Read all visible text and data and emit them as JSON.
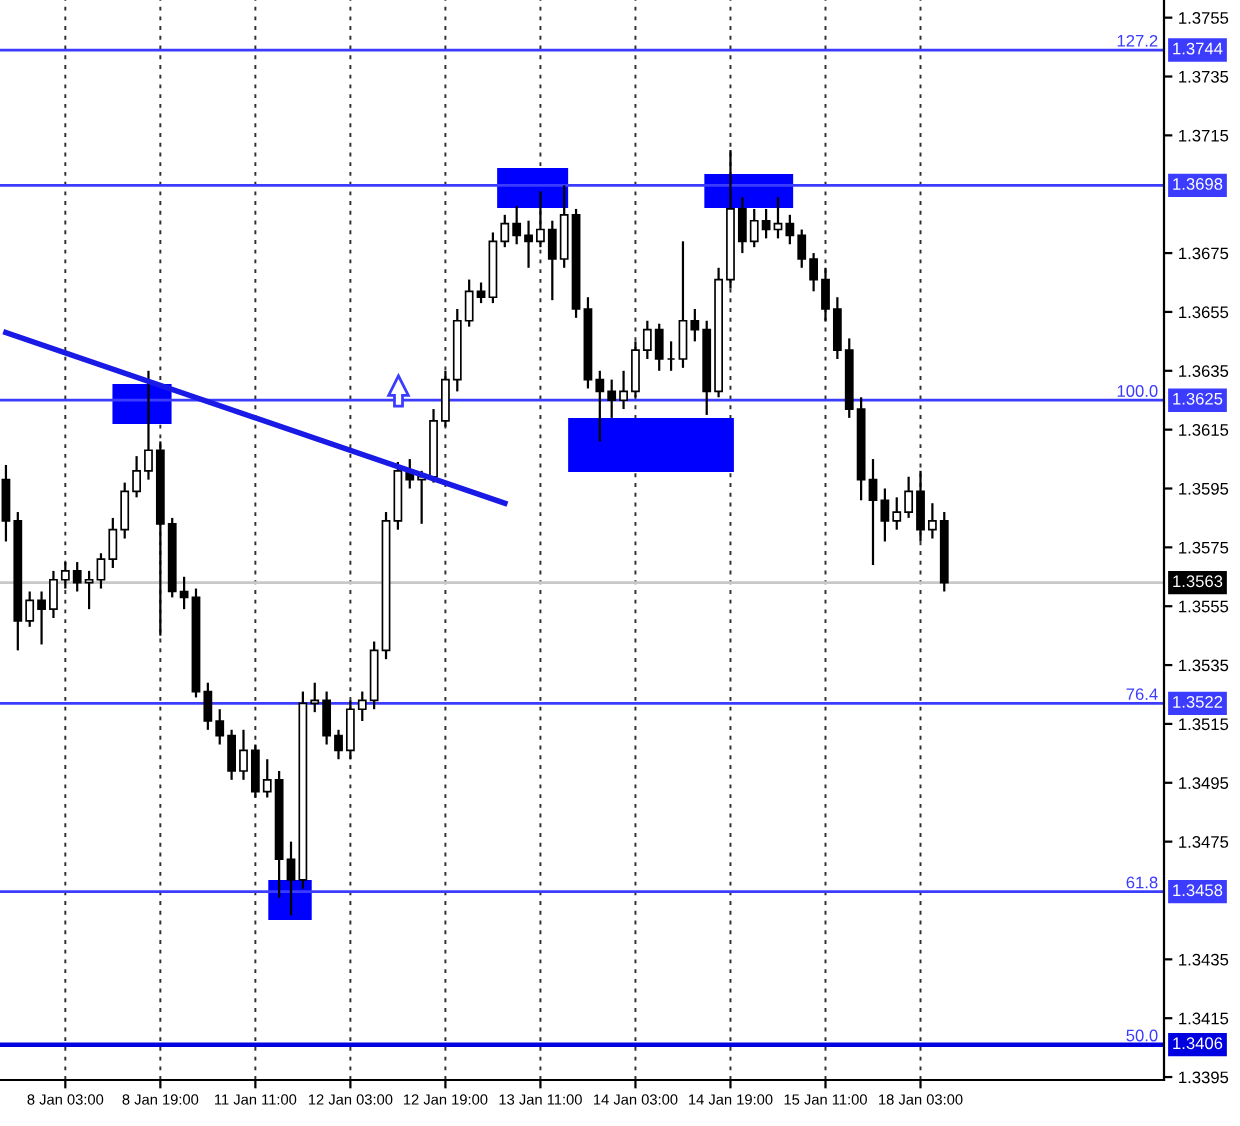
{
  "chart_data": {
    "type": "candlestick",
    "categories": [
      null,
      null,
      null,
      null,
      null,
      "8 Jan 03:00",
      null,
      null,
      null,
      null,
      null,
      null,
      null,
      "8 Jan 19:00",
      null,
      null,
      null,
      null,
      null,
      null,
      null,
      "11 Jan 11:00",
      null,
      null,
      null,
      null,
      null,
      null,
      null,
      "12 Jan 03:00",
      null,
      null,
      null,
      null,
      null,
      null,
      null,
      "12 Jan 19:00",
      null,
      null,
      null,
      null,
      null,
      null,
      null,
      "13 Jan 11:00",
      null,
      null,
      null,
      null,
      null,
      null,
      null,
      "14 Jan 03:00",
      null,
      null,
      null,
      null,
      null,
      null,
      null,
      "14 Jan 19:00",
      null,
      null,
      null,
      null,
      null,
      null,
      null,
      "15 Jan 11:00",
      null,
      null,
      null,
      null,
      null,
      null,
      null,
      "18 Jan 03:00",
      null,
      null,
      null,
      null,
      null,
      null,
      null,
      null,
      null,
      null,
      null,
      null,
      null,
      null,
      null,
      null,
      null,
      null,
      null,
      null
    ],
    "color": "#000000",
    "ohlc": [
      [
        1.3598,
        1.3603,
        1.3577,
        1.3584
      ],
      [
        1.3584,
        1.3587,
        1.354,
        1.355
      ],
      [
        1.355,
        1.356,
        1.3548,
        1.3557
      ],
      [
        1.3557,
        1.356,
        1.3542,
        1.3554
      ],
      [
        1.3554,
        1.3567,
        1.3551,
        1.3564
      ],
      [
        1.3564,
        1.357,
        1.3561,
        1.3567
      ],
      [
        1.3567,
        1.357,
        1.356,
        1.3563
      ],
      [
        1.3563,
        1.3567,
        1.3554,
        1.3564
      ],
      [
        1.3564,
        1.3573,
        1.3561,
        1.3571
      ],
      [
        1.3571,
        1.3585,
        1.3568,
        1.3581
      ],
      [
        1.3581,
        1.3597,
        1.3578,
        1.3594
      ],
      [
        1.3594,
        1.3606,
        1.3592,
        1.3601
      ],
      [
        1.3601,
        1.3635,
        1.3598,
        1.3608
      ],
      [
        1.3608,
        1.3611,
        1.3545,
        1.3583
      ],
      [
        1.3583,
        1.3585,
        1.3558,
        1.356
      ],
      [
        1.356,
        1.3565,
        1.3554,
        1.3558
      ],
      [
        1.3558,
        1.3561,
        1.3524,
        1.3526
      ],
      [
        1.3526,
        1.3529,
        1.3513,
        1.3516
      ],
      [
        1.3516,
        1.352,
        1.3508,
        1.3511
      ],
      [
        1.3511,
        1.3513,
        1.3496,
        1.3499
      ],
      [
        1.3499,
        1.3513,
        1.3496,
        1.3506
      ],
      [
        1.3506,
        1.3508,
        1.349,
        1.3492
      ],
      [
        1.3492,
        1.3503,
        1.349,
        1.3496
      ],
      [
        1.3496,
        1.3499,
        1.3456,
        1.3469
      ],
      [
        1.3469,
        1.3475,
        1.345,
        1.3462
      ],
      [
        1.3462,
        1.3526,
        1.3459,
        1.3522
      ],
      [
        1.3522,
        1.3529,
        1.3519,
        1.3523
      ],
      [
        1.3523,
        1.3526,
        1.3508,
        1.3511
      ],
      [
        1.3511,
        1.3513,
        1.3503,
        1.3506
      ],
      [
        1.3506,
        1.3523,
        1.3503,
        1.352
      ],
      [
        1.352,
        1.3526,
        1.3516,
        1.3523
      ],
      [
        1.3523,
        1.3543,
        1.352,
        1.354
      ],
      [
        1.354,
        1.3587,
        1.3537,
        1.3584
      ],
      [
        1.3584,
        1.3604,
        1.3581,
        1.3601
      ],
      [
        1.3601,
        1.3605,
        1.3595,
        1.3598
      ],
      [
        1.3598,
        1.3601,
        1.3583,
        1.3599
      ],
      [
        1.3599,
        1.3622,
        1.3597,
        1.3618
      ],
      [
        1.3618,
        1.3635,
        1.3616,
        1.3632
      ],
      [
        1.3632,
        1.3656,
        1.3628,
        1.3652
      ],
      [
        1.3652,
        1.3666,
        1.365,
        1.3662
      ],
      [
        1.3662,
        1.3665,
        1.3658,
        1.366
      ],
      [
        1.366,
        1.3682,
        1.3658,
        1.3679
      ],
      [
        1.3679,
        1.3688,
        1.3677,
        1.3685
      ],
      [
        1.3685,
        1.3691,
        1.3678,
        1.3681
      ],
      [
        1.3681,
        1.3686,
        1.367,
        1.3679
      ],
      [
        1.3679,
        1.3696,
        1.3677,
        1.3683
      ],
      [
        1.3683,
        1.3686,
        1.3659,
        1.3673
      ],
      [
        1.3673,
        1.3698,
        1.367,
        1.3688
      ],
      [
        1.3688,
        1.369,
        1.3653,
        1.3656
      ],
      [
        1.3656,
        1.366,
        1.3629,
        1.3632
      ],
      [
        1.3632,
        1.3635,
        1.3611,
        1.3628
      ],
      [
        1.3628,
        1.3632,
        1.3619,
        1.3625
      ],
      [
        1.3625,
        1.3635,
        1.3622,
        1.3628
      ],
      [
        1.3628,
        1.3645,
        1.3626,
        1.3642
      ],
      [
        1.3642,
        1.3652,
        1.3639,
        1.3649
      ],
      [
        1.3649,
        1.3651,
        1.3635,
        1.3639
      ],
      [
        1.3639,
        1.3645,
        1.3635,
        1.3639
      ],
      [
        1.3639,
        1.3679,
        1.3636,
        1.3652
      ],
      [
        1.3652,
        1.3656,
        1.3645,
        1.3649
      ],
      [
        1.3649,
        1.3652,
        1.362,
        1.3628
      ],
      [
        1.3628,
        1.367,
        1.3626,
        1.3666
      ],
      [
        1.3666,
        1.371,
        1.3663,
        1.369
      ],
      [
        1.369,
        1.3694,
        1.3675,
        1.3679
      ],
      [
        1.3679,
        1.369,
        1.3677,
        1.3686
      ],
      [
        1.3686,
        1.369,
        1.368,
        1.3683
      ],
      [
        1.3683,
        1.3694,
        1.368,
        1.3685
      ],
      [
        1.3685,
        1.3688,
        1.3678,
        1.3681
      ],
      [
        1.3681,
        1.3683,
        1.367,
        1.3673
      ],
      [
        1.3673,
        1.3675,
        1.3662,
        1.3666
      ],
      [
        1.3666,
        1.367,
        1.3652,
        1.3656
      ],
      [
        1.3656,
        1.366,
        1.3639,
        1.3642
      ],
      [
        1.3642,
        1.3646,
        1.3619,
        1.3622
      ],
      [
        1.3622,
        1.3626,
        1.3591,
        1.3598
      ],
      [
        1.3598,
        1.3605,
        1.3569,
        1.3591
      ],
      [
        1.3591,
        1.3595,
        1.3577,
        1.3584
      ],
      [
        1.3584,
        1.3592,
        1.3581,
        1.3587
      ],
      [
        1.3587,
        1.3599,
        1.3585,
        1.3594
      ],
      [
        1.3594,
        1.3601,
        1.3577,
        1.3581
      ],
      [
        1.3581,
        1.359,
        1.3578,
        1.3584
      ],
      [
        1.3584,
        1.3587,
        1.356,
        1.3563
      ],
      null,
      null,
      null,
      null,
      null,
      null,
      null,
      null,
      null,
      null,
      null,
      null,
      null,
      null,
      null,
      null,
      null,
      null
    ],
    "series": [
      {
        "type": "line",
        "color": "#1a1ae6",
        "values": [
          1.3648,
          null,
          null,
          null,
          null,
          null,
          null,
          null,
          null,
          null,
          null,
          null,
          null,
          null,
          null,
          null,
          null,
          null,
          null,
          null,
          null,
          null,
          null,
          null,
          null,
          null,
          null,
          null,
          null,
          null,
          null,
          null,
          null,
          null,
          null,
          null,
          null,
          null,
          null,
          null,
          null,
          null,
          1.359,
          null,
          null,
          null,
          null,
          null,
          null,
          null,
          null,
          null,
          null,
          null,
          null,
          null,
          null,
          null,
          null,
          null,
          null,
          null,
          null,
          null,
          null,
          null,
          null,
          null,
          null,
          null,
          null,
          null,
          null,
          null,
          null,
          null,
          null,
          null,
          null,
          null,
          null,
          null,
          null,
          null,
          null,
          null,
          null,
          null,
          null,
          null,
          null,
          null,
          null,
          null,
          null,
          null,
          null,
          null
        ]
      }
    ],
    "ylim": [
      1.3394,
      1.3761
    ],
    "yticks": [
      1.3395,
      1.3415,
      1.3435,
      1.3475,
      1.3495,
      1.3515,
      1.3535,
      1.3555,
      1.3575,
      1.3595,
      1.3615,
      1.3635,
      1.3655,
      1.3675,
      1.3715,
      1.3735,
      1.3755
    ],
    "ref_lines": [
      {
        "axis": "y",
        "value": 1.3744,
        "label": "1.3744",
        "color": "#3c3cff"
      },
      {
        "axis": "y",
        "value": 1.3698,
        "label": "1.3698",
        "color": "#3c3cff"
      },
      {
        "axis": "y",
        "value": 1.3625,
        "label": "1.3625",
        "color": "#3c3cff"
      },
      {
        "axis": "y",
        "value": 1.3563,
        "label": "1.3563",
        "color": "#c8c8c8"
      },
      {
        "axis": "y",
        "value": 1.3522,
        "label": "1.3522",
        "color": "#3c3cff"
      },
      {
        "axis": "y",
        "value": 1.3458,
        "label": "1.3458",
        "color": "#3c3cff"
      },
      {
        "axis": "y",
        "value": 1.3406,
        "label": "1.3406",
        "color": "#0000e0"
      }
    ],
    "annotations": [
      {
        "text": "127.2",
        "y": 1.3744
      },
      {
        "text": "100.0",
        "y": 1.3625
      },
      {
        "text": "76.4",
        "y": 1.3522
      },
      {
        "text": "61.8",
        "y": 1.3458
      },
      {
        "text": "50.0",
        "y": 1.3406
      }
    ],
    "grid": "x"
  }
}
